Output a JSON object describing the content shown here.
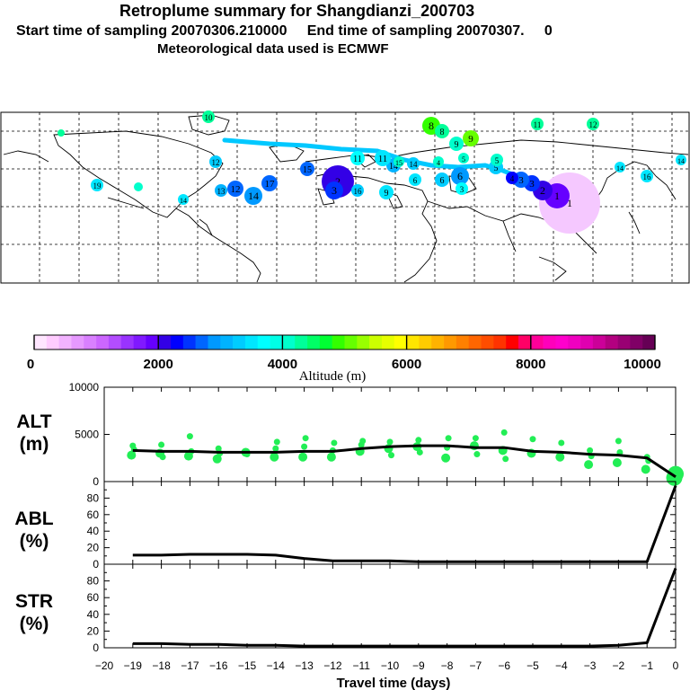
{
  "header": {
    "title": "Retroplume summary for Shangdianzi_200703",
    "subtitle": "Start time of sampling 20070306.210000     End time of sampling 20070307.     0",
    "met": "Meteorological data used is ECMWF"
  },
  "colorbar": {
    "label": "Altitude (m)",
    "ticks": [
      "0",
      "2000",
      "4000",
      "6000",
      "8000",
      "10000"
    ],
    "min": 0,
    "max": 10000,
    "colors": [
      "#ffe6ff",
      "#ffccff",
      "#f2b3ff",
      "#e699ff",
      "#d980ff",
      "#cc66ff",
      "#b34dff",
      "#9933ff",
      "#8019ff",
      "#6600ff",
      "#3300e6",
      "#0000ff",
      "#0033ff",
      "#0066ff",
      "#0099ff",
      "#00b3ff",
      "#00ccff",
      "#00e6ff",
      "#00ffff",
      "#00ffe6",
      "#00ffcc",
      "#00ff99",
      "#00ff66",
      "#00ff33",
      "#33ff00",
      "#66ff00",
      "#99ff00",
      "#ccff00",
      "#e6ff00",
      "#ffff00",
      "#ffe600",
      "#ffcc00",
      "#ffb300",
      "#ff9900",
      "#ff8000",
      "#ff6600",
      "#ff4d00",
      "#ff3300",
      "#ff0000",
      "#ff0066",
      "#ff0099",
      "#ff00bb",
      "#ff00cc",
      "#f000c0",
      "#e000b0",
      "#cc0099",
      "#b30080",
      "#990073",
      "#800066",
      "#660055"
    ]
  },
  "map": {
    "plume_labels": [
      "1",
      "2",
      "3",
      "4",
      "5",
      "6",
      "7",
      "8",
      "9",
      "10",
      "11",
      "12",
      "13",
      "14",
      "15",
      "16",
      "17",
      "18",
      "19",
      "20"
    ]
  },
  "chart_data": [
    {
      "type": "line",
      "name": "ALT",
      "label_line1": "ALT",
      "label_line2": "(m)",
      "x": [
        -19,
        -18,
        -17,
        -16,
        -15,
        -14,
        -13,
        -12,
        -11,
        -10,
        -9,
        -8,
        -7,
        -6,
        -5,
        -4,
        -3,
        -2,
        -1,
        0
      ],
      "values": [
        3300,
        3200,
        3200,
        3100,
        3100,
        3100,
        3200,
        3200,
        3500,
        3700,
        3800,
        3800,
        3600,
        3600,
        3200,
        3100,
        2900,
        2800,
        2500,
        500
      ],
      "ylim": [
        0,
        10000
      ],
      "yticks": [
        "0",
        "5000",
        "10000"
      ],
      "scatter_color": "#22ee55"
    },
    {
      "type": "line",
      "name": "ABL",
      "label_line1": "ABL",
      "label_line2": "(%)",
      "x": [
        -19,
        -18,
        -17,
        -16,
        -15,
        -14,
        -13,
        -12,
        -11,
        -10,
        -9,
        -8,
        -7,
        -6,
        -5,
        -4,
        -3,
        -2,
        -1,
        0
      ],
      "values": [
        11,
        11,
        12,
        12,
        12,
        11,
        7,
        4,
        4,
        4,
        3,
        3,
        3,
        3,
        3,
        3,
        3,
        3,
        3,
        95
      ],
      "ylim": [
        0,
        100
      ],
      "yticks": [
        "0",
        "20",
        "40",
        "60",
        "80"
      ]
    },
    {
      "type": "line",
      "name": "STR",
      "label_line1": "STR",
      "label_line2": "(%)",
      "x": [
        -19,
        -18,
        -17,
        -16,
        -15,
        -14,
        -13,
        -12,
        -11,
        -10,
        -9,
        -8,
        -7,
        -6,
        -5,
        -4,
        -3,
        -2,
        -1,
        0
      ],
      "values": [
        5,
        5,
        4,
        4,
        3,
        3,
        2,
        2,
        2,
        2,
        2,
        2,
        2,
        2,
        2,
        2,
        2,
        3,
        6,
        95
      ],
      "ylim": [
        0,
        100
      ],
      "yticks": [
        "0",
        "20",
        "40",
        "60",
        "80"
      ]
    }
  ],
  "xaxis": {
    "ticks": [
      "−20",
      "−19",
      "−18",
      "−17",
      "−16",
      "−15",
      "−14",
      "−13",
      "−12",
      "−11",
      "−10",
      "−9",
      "−8",
      "−7",
      "−6",
      "−5",
      "−4",
      "−3",
      "−2",
      "−1",
      "0"
    ],
    "label": "Travel time (days)"
  }
}
